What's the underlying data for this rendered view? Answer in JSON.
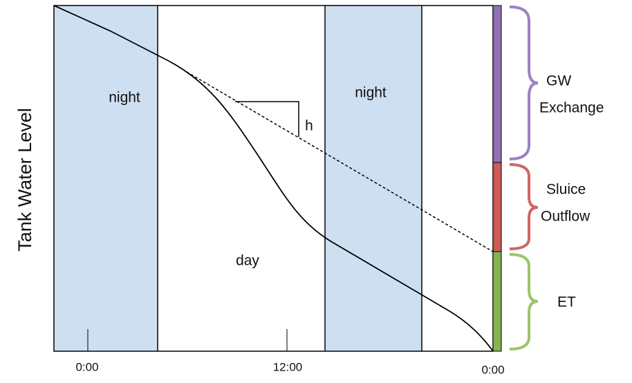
{
  "axis": {
    "y_label": "Tank Water Level",
    "x_ticks": [
      "0:00",
      "12:00",
      "0:00"
    ]
  },
  "regions": {
    "night_1": "night",
    "day": "day",
    "night_2": "night"
  },
  "annotation": "h",
  "components": [
    {
      "lines": [
        "GW",
        "Exchange"
      ]
    },
    {
      "lines": [
        "Sluice",
        "Outflow"
      ]
    },
    {
      "lines": [
        "ET"
      ]
    }
  ]
}
